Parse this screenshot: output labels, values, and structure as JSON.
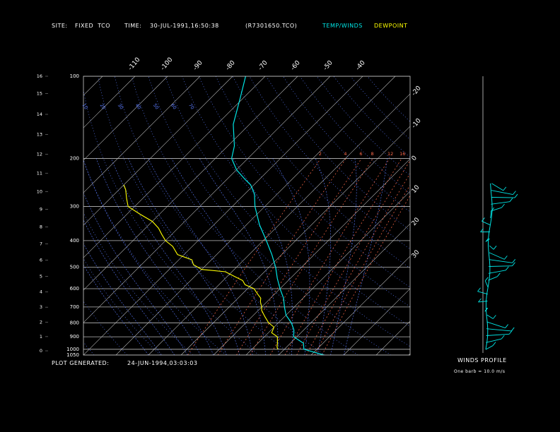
{
  "header": {
    "site_label": "SITE:",
    "site_value": "FIXED  TCO",
    "time_label": "TIME:",
    "time_value": "30-JUL-1991,16:50:38",
    "file_value": "(R7301650.TCO)",
    "legend_temp": "TEMP/WINDS",
    "legend_dew": "DEWPOINT"
  },
  "footer": {
    "generated_label": "PLOT GENERATED:",
    "generated_value": "24-JUN-1994,03:03:03"
  },
  "winds": {
    "title": "WINDS PROFILE",
    "note": "One barb = 10.0 m/s"
  },
  "colors": {
    "temp": "#00e5e5",
    "dew": "#ffff00",
    "isotherm": "#bbbbbb",
    "dry_adiabat": "#5b7bff",
    "moist_adiabat": "#5b7bff",
    "mixing_ratio": "#ff6a4a",
    "isobar": "#bbbbbb",
    "text": "#ffffff"
  },
  "chart_data": {
    "type": "line",
    "subtype": "skew-t log-p",
    "pressure_ticks": [
      "100",
      "200",
      "300",
      "400",
      "500",
      "600",
      "700",
      "800",
      "900",
      "1000",
      "1050"
    ],
    "height_ticks_km": [
      "0",
      "1",
      "2",
      "3",
      "4",
      "5",
      "6",
      "7",
      "8",
      "9",
      "10",
      "11",
      "12",
      "13",
      "14",
      "15",
      "16"
    ],
    "temp_ticks_top": [
      "-110",
      "-100",
      "-90",
      "-80",
      "-70",
      "-60",
      "-50",
      "-40"
    ],
    "temp_ticks_right": [
      "-30",
      "-20",
      "-10",
      "0",
      "10",
      "20",
      "30"
    ],
    "dry_adiabat_labels": [
      "-60",
      "-50",
      "-40",
      "-30",
      "-20",
      "-10",
      "0",
      "10",
      "20",
      "30",
      "40",
      "50",
      "60",
      "70"
    ],
    "mixing_ratio_labels": [
      "2",
      "4",
      "6",
      "8",
      "12",
      "16",
      "20",
      "24",
      "28",
      "32"
    ],
    "temp_profile": [
      [
        1050,
        34
      ],
      [
        1000,
        26
      ],
      [
        950,
        24
      ],
      [
        900,
        19
      ],
      [
        850,
        17
      ],
      [
        800,
        14
      ],
      [
        750,
        10
      ],
      [
        700,
        7
      ],
      [
        650,
        4
      ],
      [
        600,
        0
      ],
      [
        550,
        -4
      ],
      [
        500,
        -8
      ],
      [
        450,
        -13
      ],
      [
        400,
        -19
      ],
      [
        350,
        -26
      ],
      [
        300,
        -33
      ],
      [
        270,
        -37
      ],
      [
        250,
        -41
      ],
      [
        240,
        -44
      ],
      [
        220,
        -50
      ],
      [
        200,
        -55
      ],
      [
        180,
        -58
      ],
      [
        150,
        -65
      ],
      [
        120,
        -71
      ],
      [
        100,
        -76
      ]
    ],
    "dew_profile": [
      [
        1000,
        18
      ],
      [
        980,
        17
      ],
      [
        950,
        16
      ],
      [
        900,
        14
      ],
      [
        870,
        11
      ],
      [
        830,
        10
      ],
      [
        800,
        7
      ],
      [
        760,
        4
      ],
      [
        720,
        1
      ],
      [
        700,
        0
      ],
      [
        670,
        -2
      ],
      [
        650,
        -3
      ],
      [
        630,
        -5
      ],
      [
        600,
        -8
      ],
      [
        580,
        -12
      ],
      [
        560,
        -14
      ],
      [
        540,
        -18
      ],
      [
        520,
        -22
      ],
      [
        510,
        -30
      ],
      [
        490,
        -34
      ],
      [
        470,
        -36
      ],
      [
        450,
        -42
      ],
      [
        420,
        -46
      ],
      [
        400,
        -50
      ],
      [
        380,
        -53
      ],
      [
        360,
        -56
      ],
      [
        340,
        -60
      ],
      [
        320,
        -66
      ],
      [
        300,
        -72
      ],
      [
        280,
        -75
      ],
      [
        260,
        -78
      ],
      [
        250,
        -80
      ]
    ],
    "wind_levels_km": [
      0.2,
      0.6,
      1.0,
      1.4,
      1.8,
      2.2,
      2.6,
      3.0,
      3.4,
      3.8,
      4.2,
      4.6,
      5.0,
      5.4,
      5.8,
      6.2,
      6.6,
      7.0,
      7.4,
      7.8,
      8.2,
      8.6,
      9.0,
      9.4,
      9.8
    ]
  }
}
